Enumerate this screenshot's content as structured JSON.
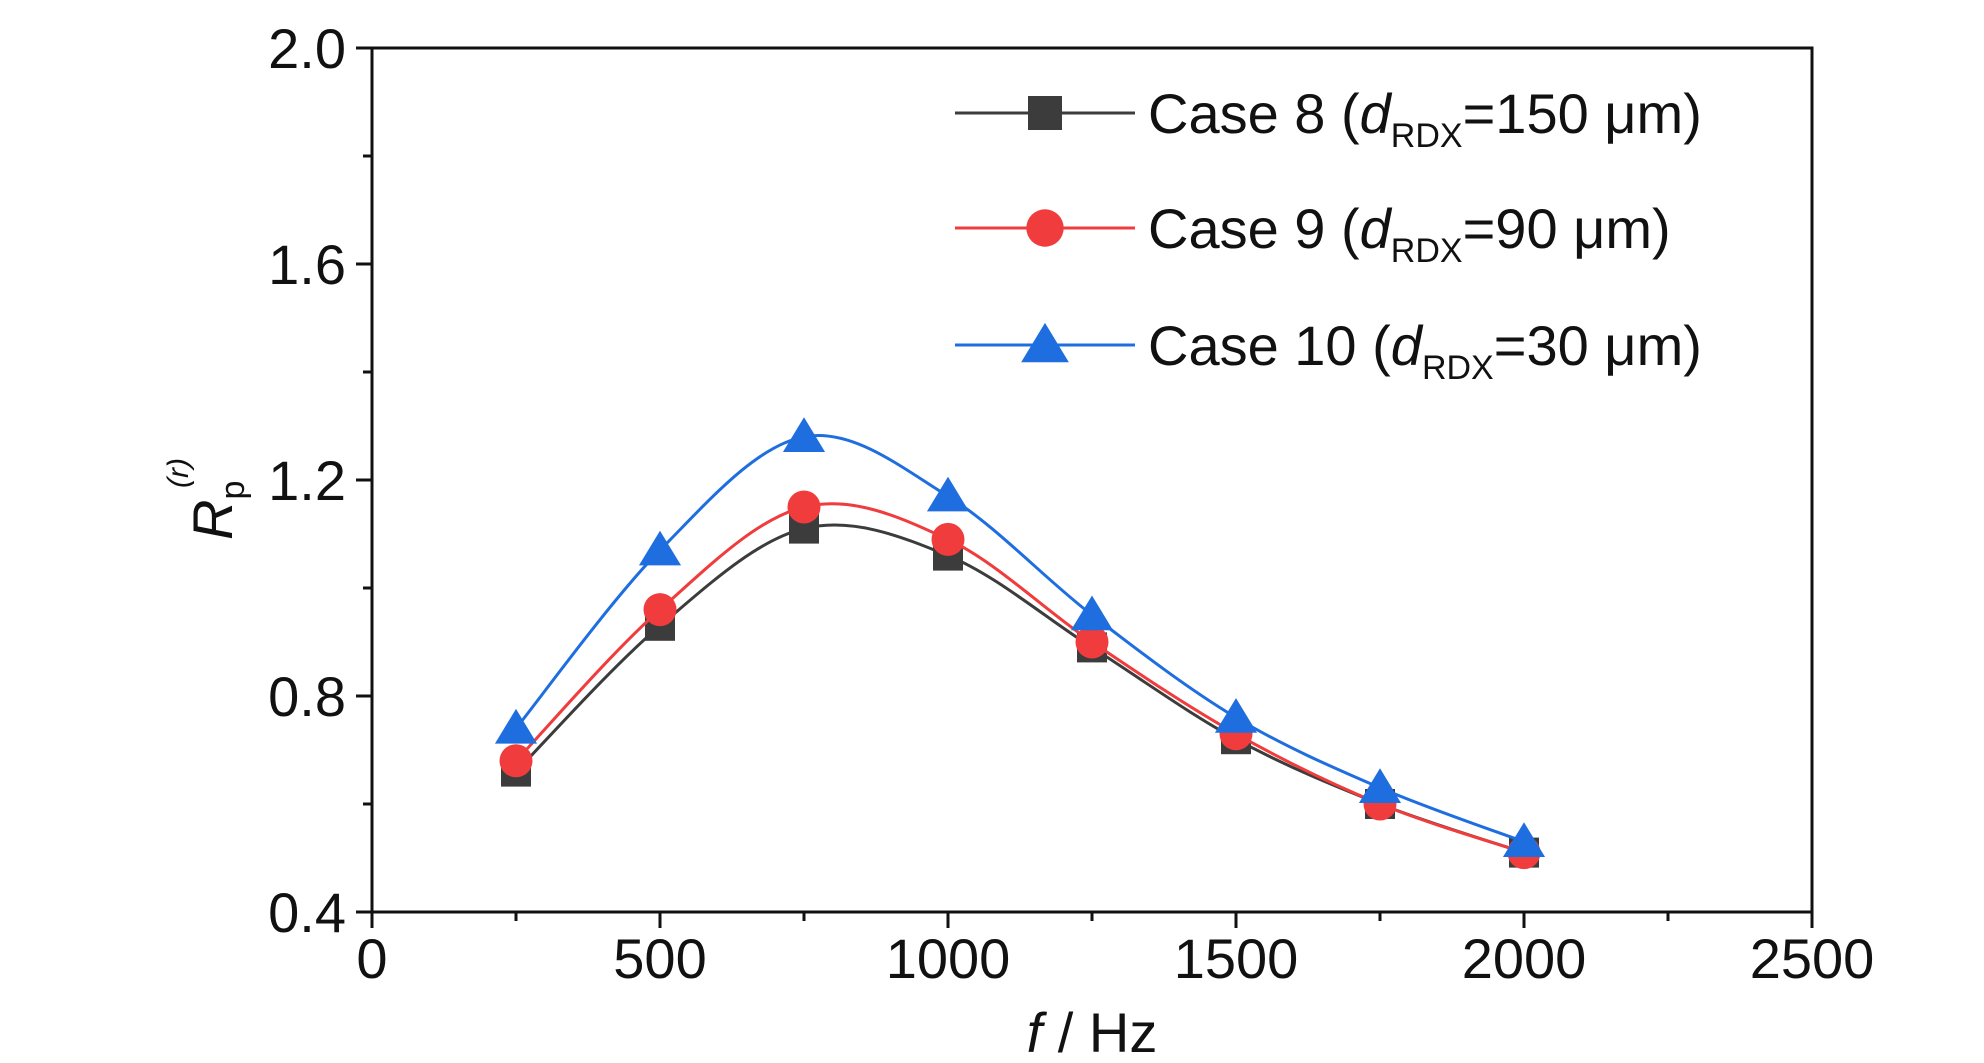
{
  "chart_data": {
    "type": "line",
    "title": "",
    "xlabel": {
      "var": "f",
      "rest": " / Hz"
    },
    "ylabel": {
      "main": "R",
      "sub": "p",
      "sup": "(r)"
    },
    "xlim": [
      0,
      2500
    ],
    "ylim": [
      0.4,
      2.0
    ],
    "xticks": [
      0,
      500,
      1000,
      1500,
      2000,
      2500
    ],
    "yticks": [
      0.4,
      0.8,
      1.2,
      1.6,
      2.0
    ],
    "ytick_labels": [
      "0.4",
      "0.8",
      "1.2",
      "1.6",
      "2.0"
    ],
    "legend_position": "top-right",
    "grid": false,
    "x": [
      250,
      500,
      750,
      1000,
      1250,
      1500,
      1750,
      2000
    ],
    "series": [
      {
        "name": "Case 8 (dRDX=150 μm)",
        "label_parts": {
          "pre": "Case 8 (",
          "var": "d",
          "sub": "RDX",
          "post": "=150 μm)"
        },
        "values": [
          0.66,
          0.93,
          1.11,
          1.06,
          0.89,
          0.72,
          0.6,
          0.51
        ],
        "color": "#3c3c3c",
        "marker": "square"
      },
      {
        "name": "Case 9 (dRDX=90 μm)",
        "label_parts": {
          "pre": "Case 9 (",
          "var": "d",
          "sub": "RDX",
          "post": "=90 μm)"
        },
        "values": [
          0.68,
          0.96,
          1.15,
          1.09,
          0.9,
          0.73,
          0.6,
          0.51
        ],
        "color": "#f03c3c",
        "marker": "circle"
      },
      {
        "name": "Case 10 (dRDX=30 μm)",
        "label_parts": {
          "pre": "Case 10 (",
          "var": "d",
          "sub": "RDX",
          "post": "=30 μm)"
        },
        "values": [
          0.74,
          1.07,
          1.28,
          1.17,
          0.95,
          0.76,
          0.63,
          0.53
        ],
        "color": "#1f6ee0",
        "marker": "triangle"
      }
    ]
  }
}
